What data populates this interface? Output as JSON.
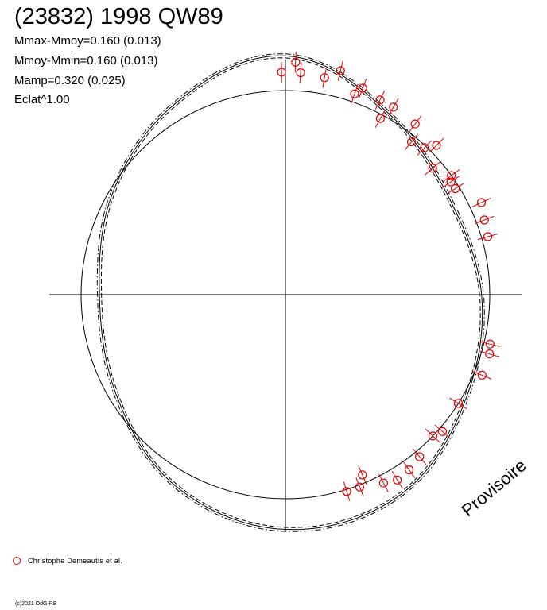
{
  "header": {
    "title": "(23832) 1998 QW89",
    "stats": [
      "Mmax-Mmoy=0.160 (0.013)",
      "Mmoy-Mmin=0.160 (0.013)",
      "Mamp=0.320 (0.025)",
      "Eclat^1.00"
    ]
  },
  "watermark": "Provisoire",
  "legend": {
    "label": "Christophe Demeautis et al.",
    "color": "#e00000"
  },
  "copyright": "(c)2021 OdG-RB",
  "chart_data": {
    "type": "scatter",
    "coordinate_system": "polar",
    "grid": false,
    "reference_circle_radius": 1.0,
    "curve_colors": {
      "model": "#000000",
      "observations": "#e00000"
    },
    "model_curves": [
      {
        "style": "solid",
        "points": [
          [
            0,
            1.17
          ],
          [
            30,
            1.02
          ],
          [
            60,
            0.93
          ],
          [
            90,
            0.96
          ],
          [
            120,
            1.02
          ],
          [
            150,
            1.13
          ],
          [
            180,
            1.15
          ],
          [
            210,
            1.08
          ],
          [
            240,
            0.96
          ],
          [
            270,
            0.91
          ],
          [
            300,
            0.98
          ],
          [
            330,
            1.08
          ]
        ]
      },
      {
        "style": "dashed",
        "points": [
          [
            0,
            1.16
          ],
          [
            30,
            1.01
          ],
          [
            60,
            0.92
          ],
          [
            90,
            0.95
          ],
          [
            120,
            1.01
          ],
          [
            150,
            1.12
          ],
          [
            180,
            1.14
          ],
          [
            210,
            1.07
          ],
          [
            240,
            0.95
          ],
          [
            270,
            0.9
          ],
          [
            300,
            0.97
          ],
          [
            330,
            1.07
          ]
        ]
      },
      {
        "style": "dash-dot",
        "points": [
          [
            0,
            1.18
          ],
          [
            30,
            1.03
          ],
          [
            60,
            0.94
          ],
          [
            90,
            0.97
          ],
          [
            120,
            1.03
          ],
          [
            150,
            1.14
          ],
          [
            180,
            1.16
          ],
          [
            210,
            1.09
          ],
          [
            240,
            0.97
          ],
          [
            270,
            0.92
          ],
          [
            300,
            0.99
          ],
          [
            330,
            1.09
          ]
        ]
      }
    ],
    "observations": [
      [
        -1.0,
        1.09
      ],
      [
        2.5,
        1.14
      ],
      [
        3.9,
        1.09
      ],
      [
        10.2,
        1.08
      ],
      [
        13.8,
        1.13
      ],
      [
        19.0,
        1.04
      ],
      [
        20.5,
        1.08
      ],
      [
        25.9,
        1.06
      ],
      [
        28.3,
        0.98
      ],
      [
        29.9,
        1.06
      ],
      [
        37.2,
        1.05
      ],
      [
        39.5,
        0.97
      ],
      [
        43.4,
        0.99
      ],
      [
        45.3,
        1.04
      ],
      [
        49.3,
        0.95
      ],
      [
        54.3,
        1.0
      ],
      [
        55.7,
        0.98
      ],
      [
        58.0,
        0.98
      ],
      [
        64.8,
        1.06
      ],
      [
        69.4,
        1.04
      ],
      [
        74.0,
        1.03
      ],
      [
        103.6,
        1.03
      ],
      [
        106.2,
        1.04
      ],
      [
        112.3,
        1.04
      ],
      [
        122.2,
        1.0
      ],
      [
        131.1,
        1.02
      ],
      [
        133.8,
        1.0
      ],
      [
        140.4,
        1.03
      ],
      [
        144.8,
        1.05
      ],
      [
        148.9,
        1.06
      ],
      [
        152.5,
        1.04
      ],
      [
        156.9,
        0.96
      ],
      [
        158.9,
        1.01
      ],
      [
        162.7,
        1.01
      ]
    ]
  }
}
